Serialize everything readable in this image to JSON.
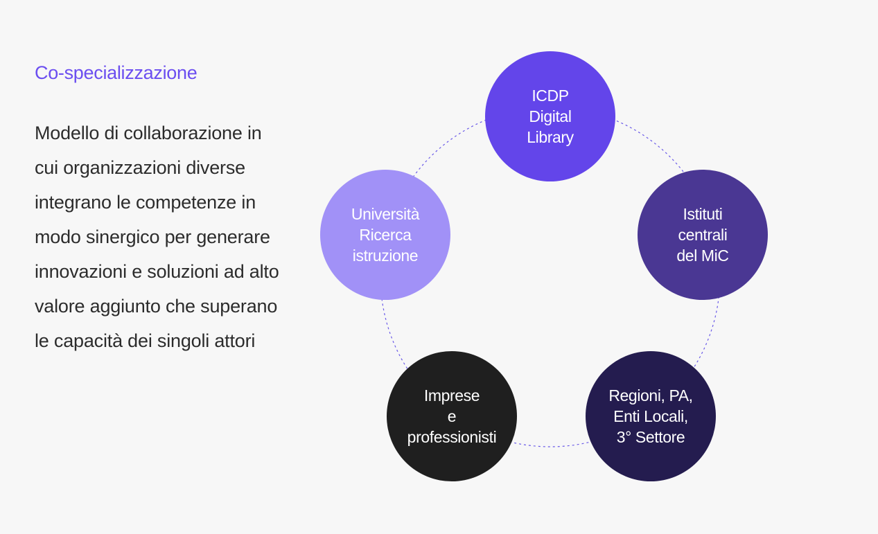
{
  "heading": "Co-specializzazione",
  "description": "Modello di collaborazione in cui organizzazioni diverse integrano le competenze in modo sinergico per generare innovazioni e soluzioni ad alto valore aggiunto che superano le capacità dei singoli attori",
  "colors": {
    "accent": "#6b4ef0",
    "background": "#f7f7f7",
    "ring": "#6a5ae8"
  },
  "nodes": [
    {
      "id": "icdp",
      "label": "ICDP\nDigital\nLibrary",
      "color": "#6345ea"
    },
    {
      "id": "istituti",
      "label": "Istituti\ncentrali\ndel MiC",
      "color": "#4a3793"
    },
    {
      "id": "regioni",
      "label": "Regioni, PA,\nEnti Locali,\n3° Settore",
      "color": "#241c4f"
    },
    {
      "id": "imprese",
      "label": "Imprese\ne\nprofessionisti",
      "color": "#1f1f1f"
    },
    {
      "id": "universita",
      "label": "Università\nRicerca\nistruzione",
      "color": "#a191f7"
    }
  ]
}
